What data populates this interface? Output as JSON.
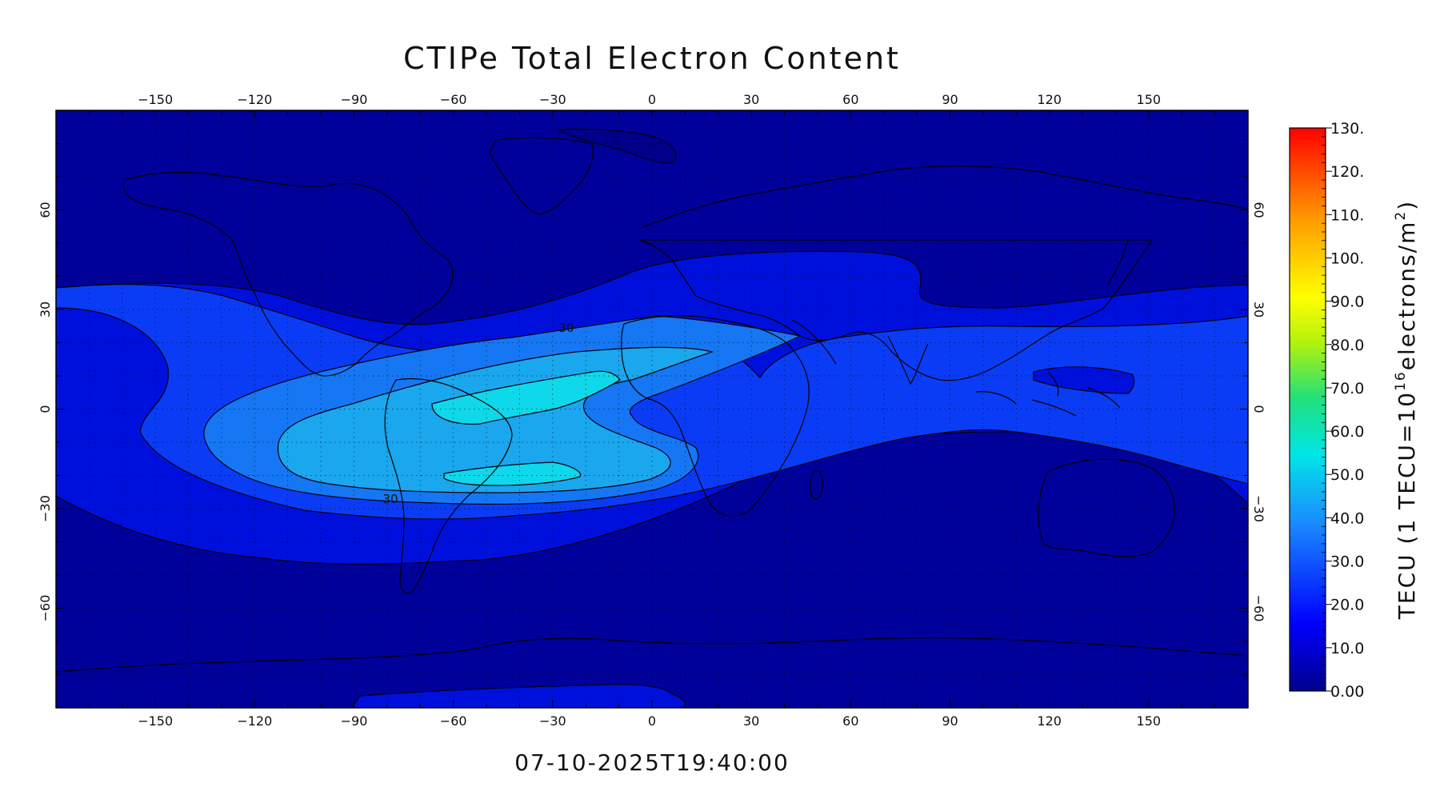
{
  "title": "CTIPe Total Electron Content",
  "timestamp": "07-10-2025T19:40:00",
  "map": {
    "lon_ticks": [
      "-150",
      "-120",
      "-90",
      "-60",
      "-30",
      "0",
      "30",
      "60",
      "90",
      "120",
      "150"
    ],
    "lat_ticks": [
      "60",
      "30",
      "0",
      "-30",
      "-60"
    ],
    "contour_labels": [
      "30",
      "30"
    ],
    "fill_levels_tecu": [
      0,
      10,
      20,
      30,
      40,
      50
    ],
    "colors": {
      "level_0_10": "#00009b",
      "level_10_20": "#0010dc",
      "level_20_30": "#0a3cf5",
      "level_30_40": "#1577f3",
      "level_40_50": "#1aa7ee",
      "level_50_60": "#0fd8ea"
    }
  },
  "colorbar": {
    "tick_labels": [
      "130.",
      "120.",
      "110.",
      "100.",
      "90.0",
      "80.0",
      "70.0",
      "60.0",
      "50.0",
      "40.0",
      "30.0",
      "20.0",
      "10.0",
      "0.00"
    ],
    "title_prefix": "TECU  (1 TECU=10",
    "title_exp": "16",
    "title_mid": "electrons/m",
    "title_exp2": "2",
    "title_suffix": ")",
    "range": [
      0,
      130
    ]
  }
}
